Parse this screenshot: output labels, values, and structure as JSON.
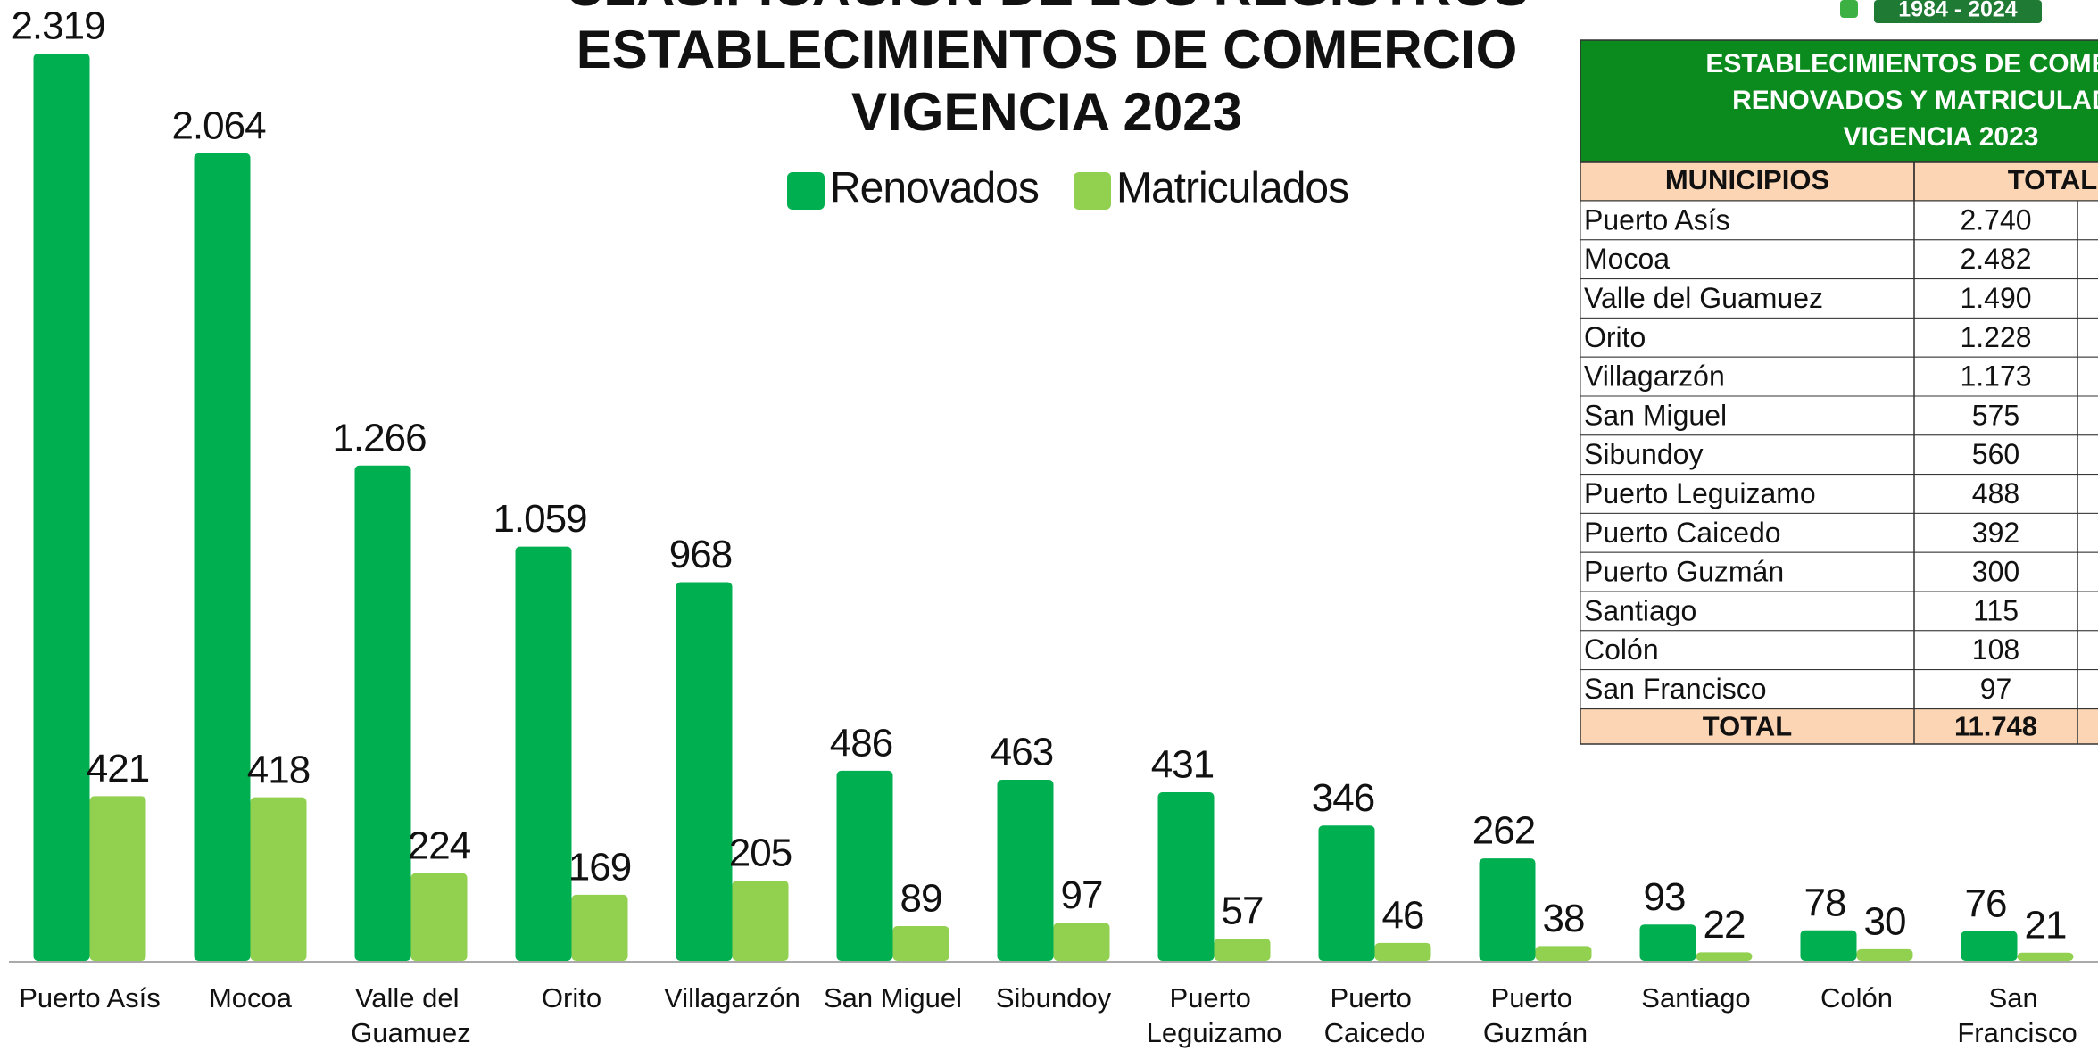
{
  "chart_data": {
    "type": "bar",
    "title_lines": [
      "CLASIFICACIÓN DE LOS REGISTROS",
      "ESTABLECIMIENTOS DE COMERCIO",
      "VIGENCIA 2023"
    ],
    "categories": [
      "Puerto Asís",
      "Mocoa",
      "Valle del Guamuez",
      "Orito",
      "Villagarzón",
      "San Miguel",
      "Sibundoy",
      "Puerto Leguizamo",
      "Puerto Caicedo",
      "Puerto Guzmán",
      "Santiago",
      "Colón",
      "San Francisco"
    ],
    "series": [
      {
        "name": "Renovados",
        "color": "#00b050",
        "values": [
          2319,
          2064,
          1266,
          1059,
          968,
          486,
          463,
          431,
          346,
          262,
          93,
          78,
          76
        ],
        "value_labels": [
          "2.319",
          "2.064",
          "1.266",
          "1.059",
          "968",
          "486",
          "463",
          "431",
          "346",
          "262",
          "93",
          "78",
          "76"
        ]
      },
      {
        "name": "Matriculados",
        "color": "#92d050",
        "values": [
          421,
          418,
          224,
          169,
          205,
          89,
          97,
          57,
          46,
          38,
          22,
          30,
          21
        ],
        "value_labels": [
          "421",
          "418",
          "224",
          "169",
          "205",
          "89",
          "97",
          "57",
          "46",
          "38",
          "22",
          "30",
          "21"
        ]
      }
    ],
    "legend": "top"
  },
  "badge": "1984 - 2024",
  "table": {
    "title_lines": [
      "ESTABLECIMIENTOS DE COMERCIO",
      "RENOVADOS Y MATRICULADOS",
      "VIGENCIA 2023"
    ],
    "header": [
      "MUNICIPIOS",
      "TOTAL"
    ],
    "rows": [
      [
        "Puerto Asís",
        "2.740"
      ],
      [
        "Mocoa",
        "2.482"
      ],
      [
        "Valle del Guamuez",
        "1.490"
      ],
      [
        "Orito",
        "1.228"
      ],
      [
        "Villagarzón",
        "1.173"
      ],
      [
        "San Miguel",
        "575"
      ],
      [
        "Sibundoy",
        "560"
      ],
      [
        "Puerto Leguizamo",
        "488"
      ],
      [
        "Puerto Caicedo",
        "392"
      ],
      [
        "Puerto Guzmán",
        "300"
      ],
      [
        "Santiago",
        "115"
      ],
      [
        "Colón",
        "108"
      ],
      [
        "San Francisco",
        "97"
      ]
    ],
    "total": [
      "TOTAL",
      "11.748"
    ]
  }
}
